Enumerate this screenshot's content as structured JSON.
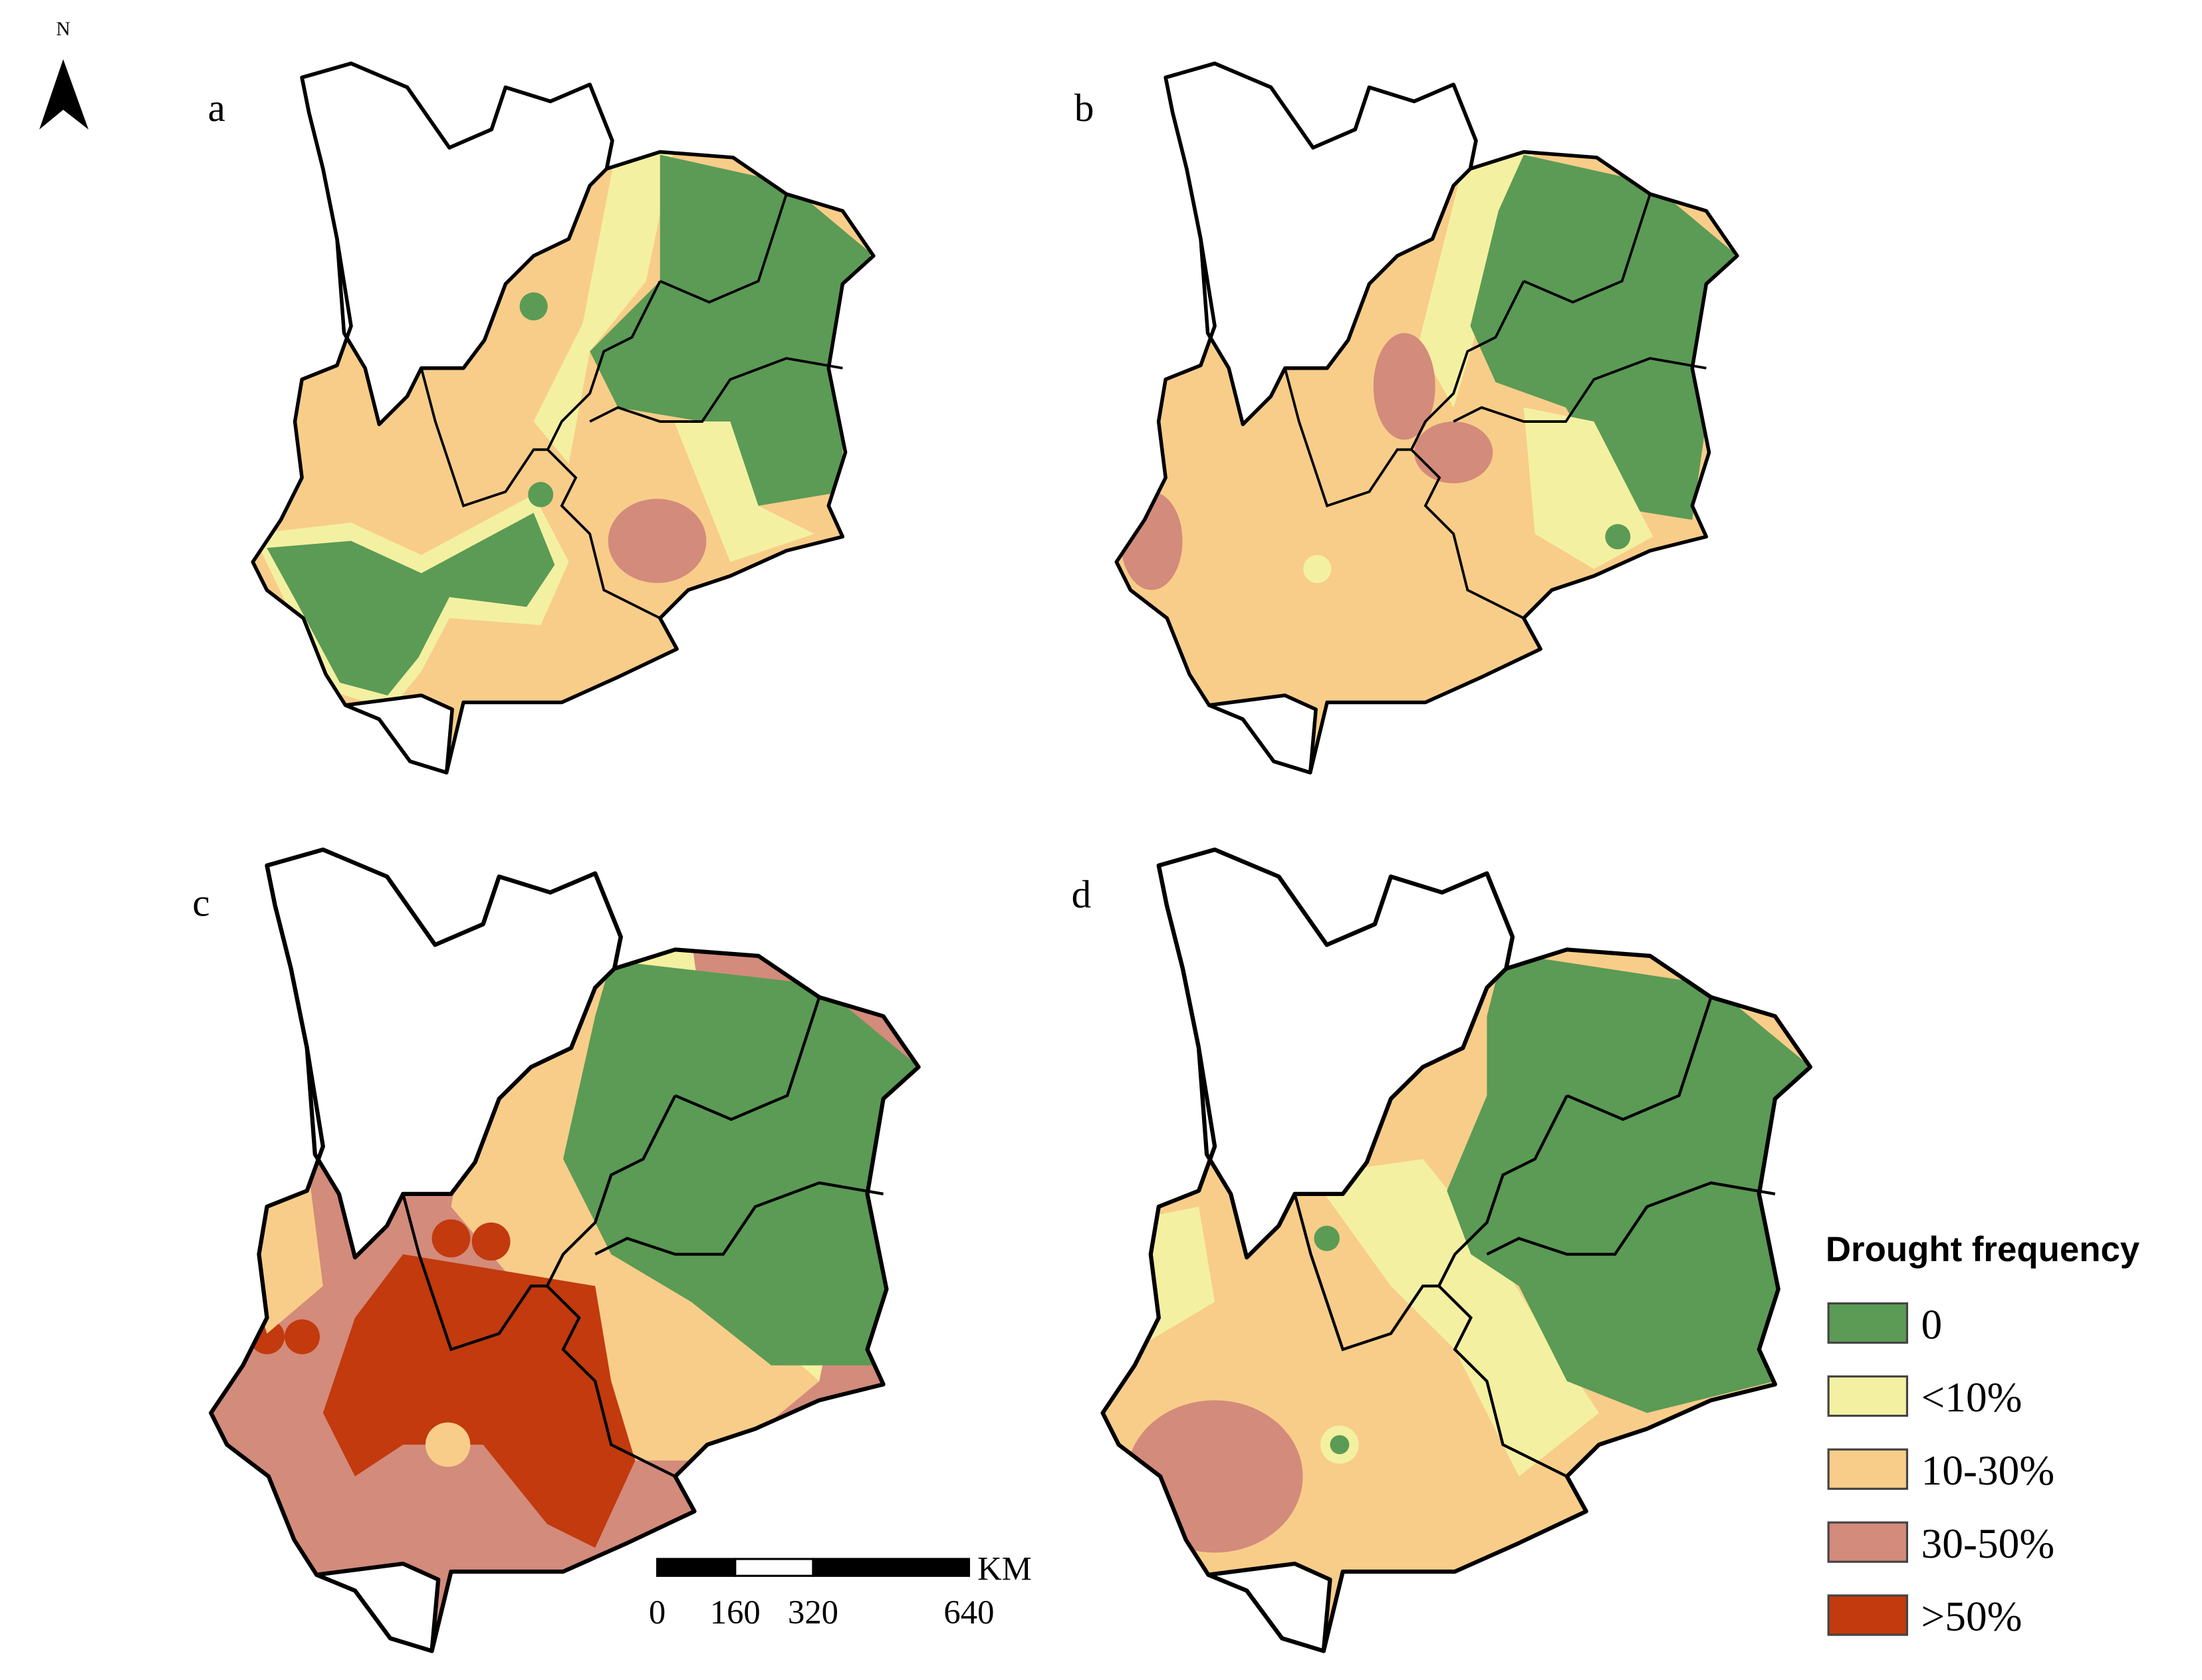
{
  "north_label": "N",
  "panels": [
    {
      "label": "a"
    },
    {
      "label": "b"
    },
    {
      "label": "c"
    },
    {
      "label": "d"
    }
  ],
  "legend": {
    "title": "Drought frequency",
    "items": [
      {
        "label": "0",
        "color": "#5b9b55"
      },
      {
        "label": "<10%",
        "color": "#f4f0a2"
      },
      {
        "label": "10-30%",
        "color": "#f8cd89"
      },
      {
        "label": "30-50%",
        "color": "#d38b7b"
      },
      {
        "label": ">50%",
        "color": "#c23a0e"
      }
    ]
  },
  "scale_bar": {
    "unit": "KM",
    "ticks": [
      0,
      160,
      320,
      640
    ]
  }
}
